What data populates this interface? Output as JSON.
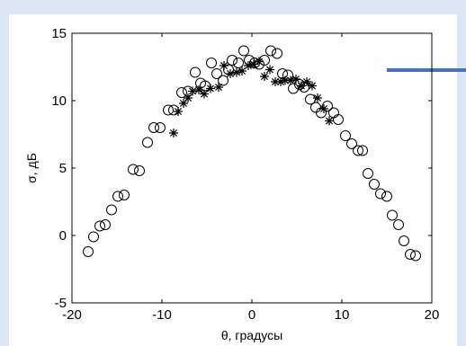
{
  "colors": {
    "background": "#dce6f4",
    "plot_panel": "#ffffff",
    "accent_line": "#4472c4",
    "marks": "#000000"
  },
  "chart_data": {
    "type": "scatter",
    "title": "",
    "xlabel": "θ, градусы",
    "ylabel": "σ, дБ",
    "xlim": [
      -20,
      20
    ],
    "ylim": [
      -5,
      15
    ],
    "x_ticks": [
      -20,
      -10,
      0,
      10,
      20
    ],
    "y_ticks": [
      -5,
      0,
      5,
      10,
      15
    ],
    "x_tick_labels": [
      "-20",
      "-10",
      "0",
      "10",
      "20"
    ],
    "y_tick_labels": [
      "-5",
      "0",
      "5",
      "10",
      "15"
    ],
    "grid": false,
    "box": true,
    "series": [
      {
        "marker": "circle",
        "x": [
          -18.2,
          -17.6,
          -16.9,
          -16.3,
          -15.6,
          -14.9,
          -14.2,
          -13.2,
          -12.5,
          -11.6,
          -10.9,
          -10.2,
          -9.3,
          -8.7,
          -7.8,
          -7.1,
          -6.3,
          -5.7,
          -5.2,
          -4.5,
          -3.9,
          -3.2,
          -2.6,
          -2.2,
          -1.5,
          -0.9,
          -0.3,
          0.3,
          0.8,
          1.4,
          2.1,
          2.8,
          3.4,
          4.0,
          4.6,
          5.3,
          5.8,
          6.5,
          7.1,
          7.7,
          8.4,
          9.1,
          9.6,
          10.4,
          11.1,
          11.8,
          12.3,
          12.9,
          13.6,
          14.3,
          15.0,
          15.6,
          16.3,
          16.9,
          17.6,
          18.2
        ],
        "y": [
          -1.2,
          -0.1,
          0.7,
          0.8,
          1.9,
          2.9,
          3.0,
          4.9,
          4.8,
          6.9,
          8.0,
          8.0,
          9.3,
          9.3,
          10.6,
          10.7,
          12.1,
          11.3,
          11.1,
          12.8,
          12.0,
          11.5,
          12.3,
          13.0,
          12.8,
          13.7,
          13.0,
          12.8,
          12.7,
          13.0,
          13.7,
          13.5,
          12.0,
          11.9,
          10.9,
          11.2,
          11.0,
          10.1,
          9.5,
          9.1,
          9.6,
          9.1,
          8.6,
          7.4,
          6.8,
          6.3,
          6.3,
          4.6,
          3.8,
          3.1,
          2.9,
          1.5,
          0.8,
          -0.4,
          -1.4,
          -1.5
        ]
      },
      {
        "marker": "star",
        "x": [
          -8.7,
          -8.2,
          -7.6,
          -7.1,
          -6.6,
          -5.9,
          -5.3,
          -4.6,
          -3.7,
          -3.1,
          -2.4,
          -1.7,
          -1.1,
          -0.4,
          0.2,
          0.8,
          1.4,
          2.0,
          2.6,
          3.2,
          3.7,
          4.3,
          4.9,
          5.5,
          6.1,
          6.7,
          7.3,
          8.0,
          8.6
        ],
        "y": [
          7.6,
          9.2,
          9.8,
          10.2,
          10.7,
          10.8,
          10.5,
          10.9,
          11.0,
          12.6,
          12.0,
          12.1,
          12.2,
          12.6,
          12.7,
          12.9,
          11.8,
          12.3,
          11.4,
          11.4,
          11.5,
          11.5,
          11.6,
          11.1,
          11.4,
          11.1,
          10.2,
          9.4,
          8.5
        ]
      }
    ]
  }
}
